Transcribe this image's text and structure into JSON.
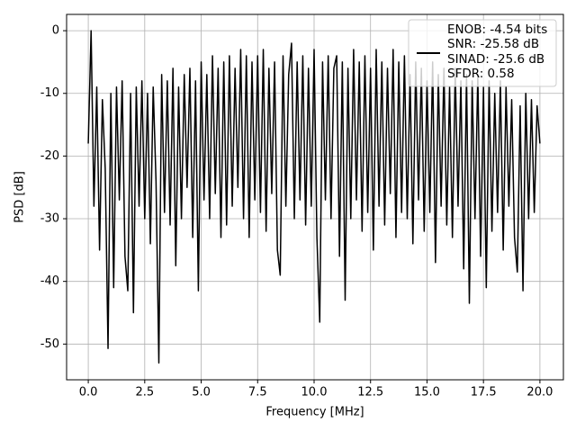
{
  "chart_data": {
    "type": "line",
    "xlabel": "Frequency [MHz]",
    "ylabel": "PSD [dB]",
    "x": [
      0,
      0.125,
      0.25,
      0.375,
      0.5,
      0.625,
      0.75,
      0.875,
      1,
      1.125,
      1.25,
      1.375,
      1.5,
      1.625,
      1.75,
      1.875,
      2,
      2.125,
      2.25,
      2.375,
      2.5,
      2.625,
      2.75,
      2.875,
      3,
      3.125,
      3.25,
      3.375,
      3.5,
      3.625,
      3.75,
      3.875,
      4,
      4.125,
      4.25,
      4.375,
      4.5,
      4.625,
      4.75,
      4.875,
      5,
      5.125,
      5.25,
      5.375,
      5.5,
      5.625,
      5.75,
      5.875,
      6,
      6.125,
      6.25,
      6.375,
      6.5,
      6.625,
      6.75,
      6.875,
      7,
      7.125,
      7.25,
      7.375,
      7.5,
      7.625,
      7.75,
      7.875,
      8,
      8.125,
      8.25,
      8.375,
      8.5,
      8.625,
      8.75,
      8.875,
      9,
      9.125,
      9.25,
      9.375,
      9.5,
      9.625,
      9.75,
      9.875,
      10,
      10.125,
      10.25,
      10.375,
      10.5,
      10.625,
      10.75,
      10.875,
      11,
      11.125,
      11.25,
      11.375,
      11.5,
      11.625,
      11.75,
      11.875,
      12,
      12.125,
      12.25,
      12.375,
      12.5,
      12.625,
      12.75,
      12.875,
      13,
      13.125,
      13.25,
      13.375,
      13.5,
      13.625,
      13.75,
      13.875,
      14,
      14.125,
      14.25,
      14.375,
      14.5,
      14.625,
      14.75,
      14.875,
      15,
      15.125,
      15.25,
      15.375,
      15.5,
      15.625,
      15.75,
      15.875,
      16,
      16.125,
      16.25,
      16.375,
      16.5,
      16.625,
      16.75,
      16.875,
      17,
      17.125,
      17.25,
      17.375,
      17.5,
      17.625,
      17.75,
      17.875,
      18,
      18.125,
      18.25,
      18.375,
      18.5,
      18.625,
      18.75,
      18.875,
      19,
      19.125,
      19.25,
      19.375,
      19.5,
      19.625,
      19.75,
      19.875,
      20
    ],
    "series": [
      {
        "name": "ENOB: -4.54 bits\nSNR: -25.58 dB\nSINAD: -25.6 dB\nSFDR: 0.58",
        "color": "#000000",
        "values": [
          -18,
          0,
          -28,
          -9,
          -35,
          -11,
          -22,
          -50.7,
          -10,
          -41,
          -9,
          -27,
          -8,
          -36,
          -41.5,
          -10,
          -45,
          -9,
          -28,
          -8,
          -30,
          -10,
          -34,
          -9,
          -24,
          -53,
          -7,
          -29,
          -8,
          -31,
          -6,
          -37.5,
          -9,
          -30,
          -7,
          -25,
          -6,
          -33,
          -8,
          -41.5,
          -5,
          -27,
          -7,
          -30,
          -4,
          -26,
          -6,
          -33,
          -5,
          -31,
          -4,
          -28,
          -6,
          -25,
          -3,
          -30,
          -4,
          -33,
          -5,
          -27,
          -4,
          -29,
          -3,
          -32,
          -6,
          -26,
          -5,
          -35,
          -39,
          -4,
          -28,
          -7,
          -2,
          -30,
          -5,
          -27,
          -4,
          -31,
          -6,
          -28,
          -3,
          -33,
          -46.5,
          -5,
          -27,
          -4,
          -30,
          -6,
          -4,
          -36,
          -5,
          -43,
          -6,
          -30,
          -3,
          -27,
          -5,
          -32,
          -4,
          -29,
          -6,
          -35,
          -3,
          -28,
          -5,
          -31,
          -6,
          -26,
          -3,
          -33,
          -5,
          -29,
          -4,
          -30,
          -7,
          -34,
          -5,
          -27,
          -6,
          -32,
          -8,
          -29,
          -5,
          -37,
          -7,
          -28,
          -6,
          -31,
          -9,
          -33,
          -6,
          -28,
          -8,
          -38,
          -7,
          -43.5,
          -8,
          -30,
          -7,
          -36,
          -9,
          -41,
          -8,
          -32,
          -10,
          -29,
          -8,
          -35,
          -9,
          -28,
          -11,
          -33,
          -38.5,
          -12,
          -41.5,
          -10,
          -30,
          -11,
          -29,
          -12,
          -18
        ]
      }
    ],
    "xlim": [
      -0.96,
      21.04
    ],
    "ylim": [
      -55.7,
      2.6
    ],
    "xticks": [
      {
        "value": 0,
        "label": "0.0"
      },
      2.5,
      {
        "value": 5,
        "label": "5.0"
      },
      7.5,
      {
        "value": 10,
        "label": "10.0"
      },
      12.5,
      {
        "value": 15,
        "label": "15.0"
      },
      17.5,
      {
        "value": 20,
        "label": "20.0"
      }
    ],
    "yticks": [
      0,
      -10,
      -20,
      -30,
      -40,
      -50
    ],
    "grid": true,
    "legend": "upper right"
  }
}
